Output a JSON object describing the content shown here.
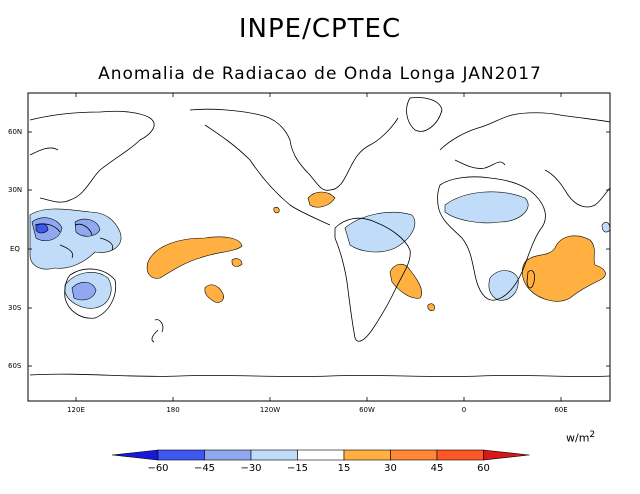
{
  "header": {
    "title": "INPE/CPTEC",
    "subtitle": "Anomalia de Radiacao de Onda Longa JAN2017"
  },
  "map": {
    "lat_ticks": [
      "60N",
      "30N",
      "EQ",
      "30S",
      "60S"
    ],
    "lon_ticks": [
      "120E",
      "180",
      "120W",
      "60W",
      "0",
      "60E"
    ],
    "ocean_color": "#ffffff",
    "coast_color": "#000000"
  },
  "colorbar": {
    "units_base": "w/m",
    "units_exp": "2",
    "labels": [
      "−60",
      "−45",
      "−30",
      "−15",
      "15",
      "30",
      "45",
      "60"
    ],
    "colors": [
      "#1818d8",
      "#3c58f0",
      "#90a8f0",
      "#c0dcf8",
      "#ffffff",
      "#ffb040",
      "#ff8838",
      "#ff5828",
      "#d81818"
    ]
  },
  "anomalies": {
    "negative_color": "#c0dcf8",
    "negative_strong_color": "#90a8f0",
    "negative_max_color": "#3c58f0",
    "positive_color": "#ffb040"
  }
}
